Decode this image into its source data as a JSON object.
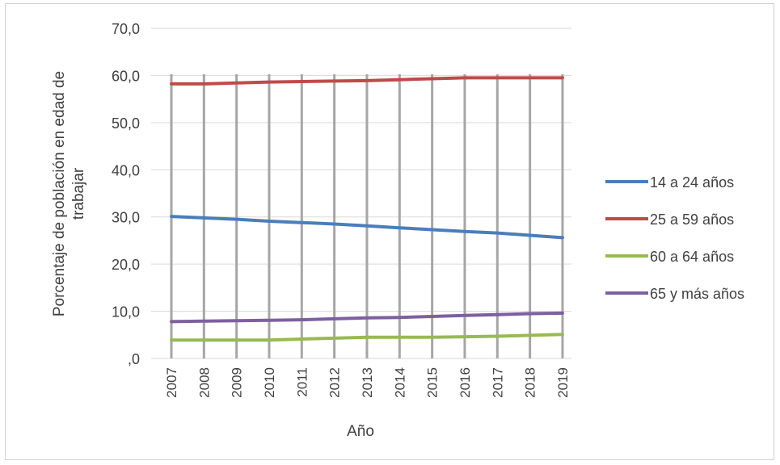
{
  "chart_data": {
    "type": "line",
    "title": "",
    "xlabel": "Año",
    "ylabel_lines": [
      "Porcentaje de población en edad de",
      "trabajar"
    ],
    "categories": [
      "2007",
      "2008",
      "2009",
      "2010",
      "2011",
      "2012",
      "2013",
      "2014",
      "2015",
      "2016",
      "2017",
      "2018",
      "2019"
    ],
    "y_ticks": [
      ",0",
      "10,0",
      "20,0",
      "30,0",
      "40,0",
      "50,0",
      "60,0",
      "70,0"
    ],
    "ylim": [
      0,
      70
    ],
    "grid": "vertical lines at each category, horizontal lines at each y tick",
    "legend_position": "right",
    "series": [
      {
        "name": "14 a 24 años",
        "color": "#4a7ebb",
        "values": [
          30.1,
          29.8,
          29.5,
          29.1,
          28.8,
          28.5,
          28.1,
          27.7,
          27.3,
          26.9,
          26.6,
          26.1,
          25.6
        ]
      },
      {
        "name": "25 a 59 años",
        "color": "#be4b48",
        "values": [
          58.2,
          58.2,
          58.4,
          58.6,
          58.7,
          58.8,
          58.9,
          59.1,
          59.3,
          59.5,
          59.5,
          59.5,
          59.5
        ]
      },
      {
        "name": "60 a 64 años",
        "color": "#98b954",
        "values": [
          3.9,
          3.9,
          3.9,
          3.9,
          4.1,
          4.3,
          4.5,
          4.5,
          4.5,
          4.6,
          4.7,
          4.9,
          5.1
        ]
      },
      {
        "name": "65 y más  años",
        "color": "#7d60a0",
        "values": [
          7.8,
          7.9,
          8.0,
          8.1,
          8.2,
          8.4,
          8.6,
          8.7,
          8.9,
          9.1,
          9.3,
          9.5,
          9.6
        ]
      }
    ]
  }
}
